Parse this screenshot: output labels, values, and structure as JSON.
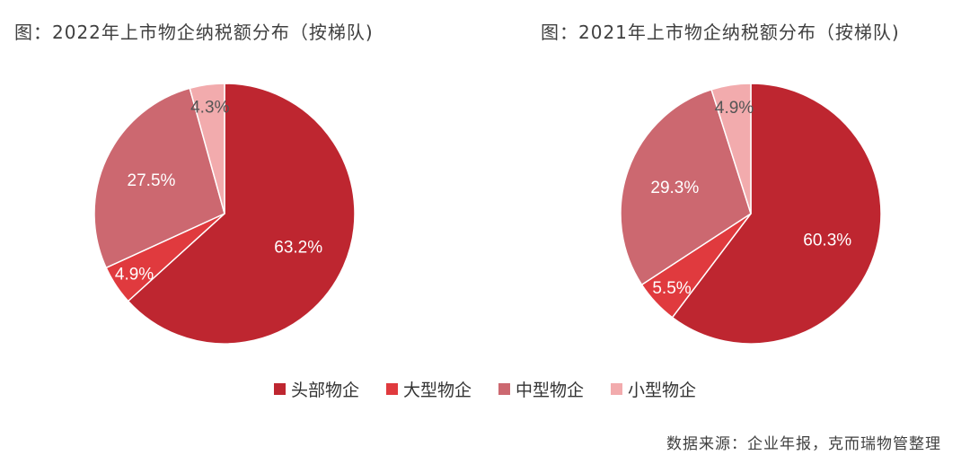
{
  "chart_data": [
    {
      "type": "pie",
      "title": "图：2022年上市物企纳税额分布（按梯队)",
      "categories": [
        "头部物企",
        "大型物企",
        "中型物企",
        "小型物企"
      ],
      "values": [
        63.2,
        4.9,
        27.5,
        4.3
      ],
      "labels": [
        "63.2%",
        "4.9%",
        "27.5%",
        "4.3%"
      ],
      "colors": [
        "#BE2630",
        "#E03A3E",
        "#CC6870",
        "#F2ABAD"
      ]
    },
    {
      "type": "pie",
      "title": "图：2021年上市物企纳税额分布（按梯队)",
      "categories": [
        "头部物企",
        "大型物企",
        "中型物企",
        "小型物企"
      ],
      "values": [
        60.3,
        5.5,
        29.3,
        4.9
      ],
      "labels": [
        "60.3%",
        "5.5%",
        "29.3%",
        "4.9%"
      ],
      "colors": [
        "#BE2630",
        "#E03A3E",
        "#CC6870",
        "#F2ABAD"
      ]
    }
  ],
  "legend": {
    "placement": "bottom-center",
    "items": [
      {
        "label": "头部物企",
        "color": "#BE2630"
      },
      {
        "label": "大型物企",
        "color": "#E03A3E"
      },
      {
        "label": "中型物企",
        "color": "#CC6870"
      },
      {
        "label": "小型物企",
        "color": "#F2ABAD"
      }
    ]
  },
  "source": "数据来源：企业年报，克而瑞物管整理"
}
